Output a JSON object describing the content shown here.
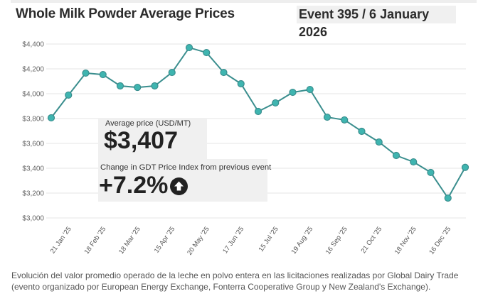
{
  "header": {
    "title": "Whole Milk Powder Average Prices",
    "event": "Event 395 / 6 January 2026"
  },
  "summary": {
    "avg_label": "Average price (USD/MT)",
    "avg_value": "$3,407",
    "change_label": "Change in GDT Price Index from previous event",
    "change_value": "+7.2%",
    "change_icon": "arrow-up-circle-icon"
  },
  "caption": "Evolución del valor promedio operado de la leche en polvo entera en las licitaciones realizadas por Global Dairy Trade (evento organizado por European Energy Exchange, Fonterra Cooperative Group y New Zealand's Exchange).",
  "colors": {
    "line": "#3a8e8e",
    "marker": "#3fb5b0",
    "grid": "#e6e6e6"
  },
  "chart_data": {
    "type": "line",
    "title": "Whole Milk Powder Average Prices",
    "xlabel": "",
    "ylabel": "",
    "ylim": [
      3000,
      4400
    ],
    "yticks": [
      3000,
      3200,
      3400,
      3600,
      3800,
      4000,
      4200,
      4400
    ],
    "ytick_labels": [
      "$3,000",
      "$3,200",
      "$3,400",
      "$3,600",
      "$3,800",
      "$4,000",
      "$4,200",
      "$4,400"
    ],
    "grid": true,
    "x_labels": [
      "21 Jan '25",
      "18 Feb '25",
      "18 Mar '25",
      "15 Apr '25",
      "20 May '25",
      "17 Jun '25",
      "15 Jul '25",
      "19 Aug '25",
      "16 Sep '25",
      "21 Oct '25",
      "18 Nov '25",
      "16 Dec '25"
    ],
    "x_label_indices": [
      1,
      3,
      5,
      7,
      9,
      11,
      13,
      15,
      17,
      19,
      21,
      23
    ],
    "series": [
      {
        "name": "Whole Milk Powder average price (USD/MT)",
        "values": [
          3806,
          3989,
          4166,
          4154,
          4063,
          4051,
          4063,
          4171,
          4371,
          4331,
          4171,
          4080,
          3857,
          3926,
          4011,
          4034,
          3811,
          3789,
          3697,
          3611,
          3503,
          3451,
          3366,
          3160,
          3407
        ]
      }
    ]
  }
}
